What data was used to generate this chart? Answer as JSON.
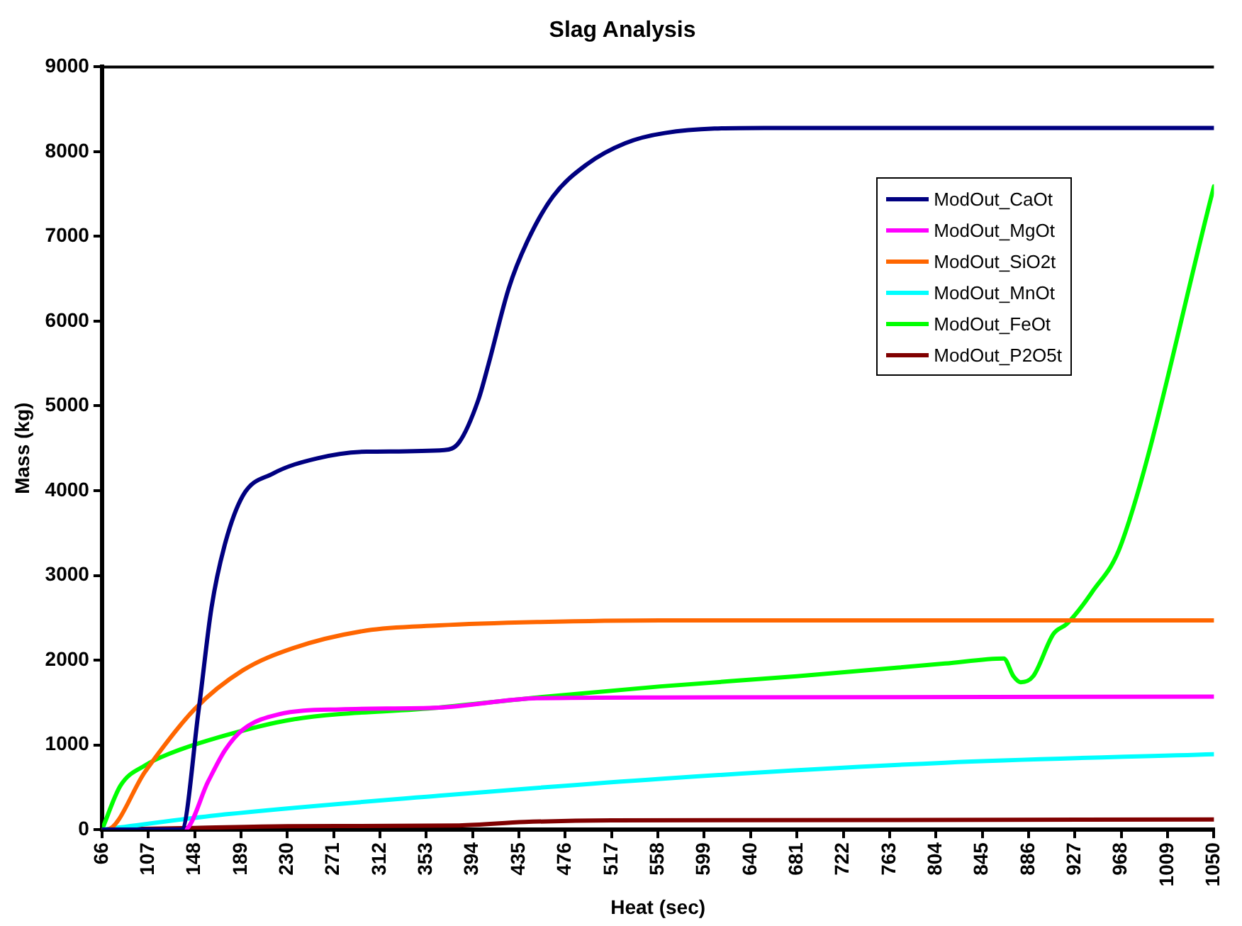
{
  "chart_data": {
    "type": "line",
    "title": "Slag Analysis",
    "xlabel": "Heat (sec)",
    "ylabel": "Mass (kg)",
    "xlim": [
      66,
      1050
    ],
    "xticks": [
      66,
      107,
      148,
      189,
      230,
      271,
      312,
      353,
      394,
      435,
      476,
      517,
      558,
      599,
      640,
      681,
      722,
      763,
      804,
      845,
      886,
      927,
      968,
      1009,
      1050
    ],
    "ylim": [
      0,
      9000
    ],
    "yticks": [
      0,
      1000,
      2000,
      3000,
      4000,
      5000,
      6000,
      7000,
      8000,
      9000
    ],
    "grid": false,
    "legend": "top right",
    "marker": "none",
    "line_style": "solid",
    "series": [
      {
        "name": "ModOut_CaOt",
        "color": "#000080",
        "x": [
          66,
          130,
          136.5,
          151.6,
          162.9,
          174.2,
          190.6,
          217,
          256,
          300,
          369,
          382,
          399,
          408,
          426,
          442,
          465,
          495,
          529,
          564,
          652,
          1050
        ],
        "values": [
          0,
          0,
          0,
          1420,
          2620,
          3340,
          3940,
          4200,
          4380,
          4460,
          4480,
          4570,
          5070,
          5490,
          6390,
          6930,
          7470,
          7850,
          8100,
          8220,
          8280,
          8280
        ]
      },
      {
        "name": "ModOut_MgOt",
        "color": "#ff00ff",
        "x": [
          66,
          139,
          160,
          175,
          190.6,
          222,
          277,
          364,
          451,
          560,
          1050
        ],
        "values": [
          0,
          0,
          570,
          940,
          1180,
          1360,
          1420,
          1440,
          1550,
          1560,
          1570
        ]
      },
      {
        "name": "ModOut_SiO2t",
        "color": "#ff6600",
        "x": [
          66,
          70,
          104.4,
          147.8,
          190.6,
          234.6,
          300,
          364,
          451,
          560,
          1050
        ],
        "values": [
          0,
          0,
          690,
          1420,
          1880,
          2140,
          2350,
          2410,
          2450,
          2470,
          2470
        ]
      },
      {
        "name": "ModOut_MnOt",
        "color": "#00ffff",
        "x": [
          66,
          175,
          364,
          560,
          812,
          1050
        ],
        "values": [
          0,
          180,
          400,
          600,
          790,
          890
        ]
      },
      {
        "name": "ModOut_FeOt",
        "color": "#00ff00",
        "x": [
          66,
          82.4,
          104.4,
          126.4,
          169.2,
          234.6,
          364,
          451,
          560,
          681,
          812,
          864,
          872.6,
          879,
          890,
          908,
          920,
          942,
          968,
          1050
        ],
        "values": [
          0,
          520,
          760,
          900,
          1090,
          1300,
          1440,
          1560,
          1690,
          1810,
          1960,
          2020,
          1810,
          1740,
          1810,
          2310,
          2430,
          2800,
          3370,
          7590
        ]
      },
      {
        "name": "ModOut_P2O5t",
        "color": "#800000",
        "x": [
          66,
          148,
          230,
          382,
          440,
          517,
          1050
        ],
        "values": [
          0,
          20,
          40,
          50,
          90,
          110,
          120
        ]
      }
    ]
  }
}
